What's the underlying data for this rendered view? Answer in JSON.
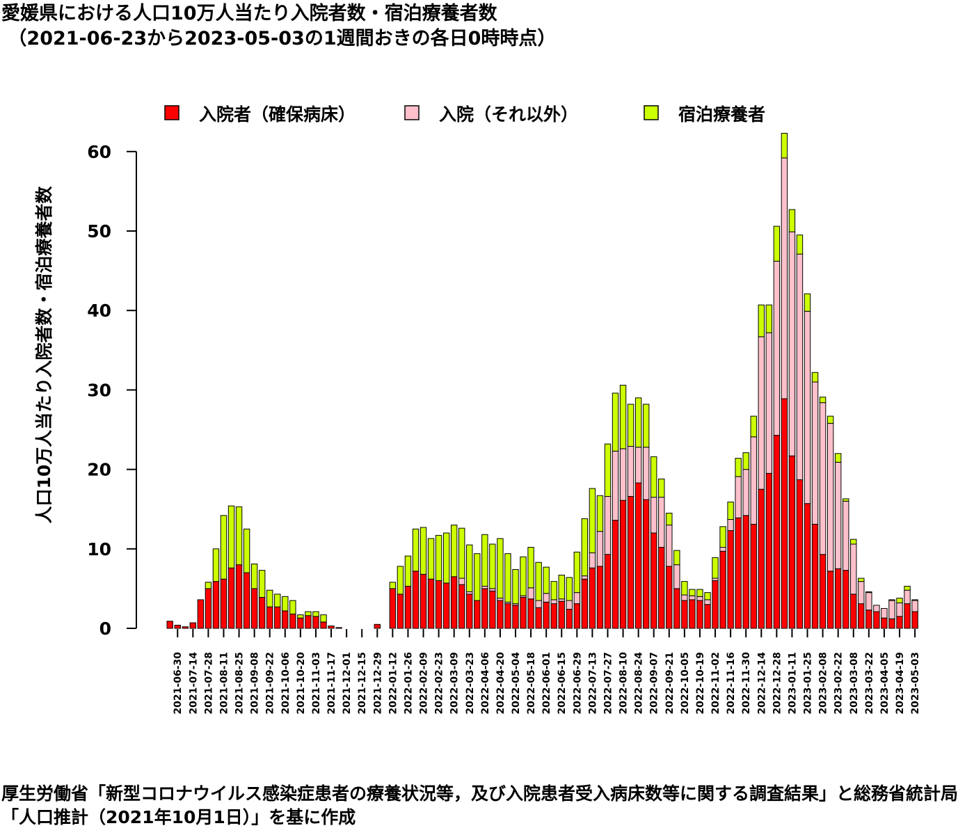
{
  "title": {
    "line1": "愛媛県における人口10万人当たり入院者数・宿泊療養者数",
    "line2": "（2021-06-23から2023-05-03の1週間おきの各日0時時点）"
  },
  "footer": "厚生労働省「新型コロナウイルス感染症患者の療養状況等，及び入院患者受入病床数等に関する調査結果」と総務省統計局「人口推計（2021年10月1日）」を基に作成",
  "chart_data": {
    "type": "bar",
    "stacked": true,
    "title": "愛媛県における人口10万人当たり入院者数・宿泊療養者数 （2021-06-23から2023-05-03の1週間おきの各日0時時点）",
    "ylabel": "人口10万人当たり入院者数・宿泊療養者数",
    "xlabel": "",
    "ylim": [
      0,
      62.5
    ],
    "yticks": [
      0,
      10,
      20,
      30,
      40,
      50,
      60
    ],
    "legend_position": "top",
    "grid": false,
    "x_tick_labels": [
      "2021-06-30",
      "2021-07-14",
      "2021-07-28",
      "2021-08-11",
      "2021-08-25",
      "2021-09-08",
      "2021-09-22",
      "2021-10-06",
      "2021-10-20",
      "2021-11-03",
      "2021-11-17",
      "2021-12-01",
      "2021-12-15",
      "2021-12-29",
      "2022-01-12",
      "2022-01-26",
      "2022-02-09",
      "2022-02-23",
      "2022-03-09",
      "2022-03-23",
      "2022-04-06",
      "2022-04-20",
      "2022-05-04",
      "2022-05-18",
      "2022-06-01",
      "2022-06-15",
      "2022-06-29",
      "2022-07-13",
      "2022-07-27",
      "2022-08-10",
      "2022-08-24",
      "2022-09-07",
      "2022-09-21",
      "2022-10-05",
      "2022-10-19",
      "2022-11-02",
      "2022-11-16",
      "2022-11-30",
      "2022-12-14",
      "2022-12-28",
      "2023-01-11",
      "2023-01-25",
      "2023-02-08",
      "2023-02-22",
      "2023-03-08",
      "2023-03-22",
      "2023-04-05",
      "2023-04-19",
      "2023-05-03"
    ],
    "categories": [
      "2021-06-23",
      "2021-06-30",
      "2021-07-07",
      "2021-07-14",
      "2021-07-21",
      "2021-07-28",
      "2021-08-04",
      "2021-08-11",
      "2021-08-18",
      "2021-08-25",
      "2021-09-01",
      "2021-09-08",
      "2021-09-15",
      "2021-09-22",
      "2021-09-29",
      "2021-10-06",
      "2021-10-13",
      "2021-10-20",
      "2021-10-27",
      "2021-11-03",
      "2021-11-10",
      "2021-11-17",
      "2021-11-24",
      "2021-12-01",
      "2021-12-08",
      "2021-12-15",
      "2021-12-22",
      "2021-12-29",
      "2022-01-05",
      "2022-01-12",
      "2022-01-19",
      "2022-01-26",
      "2022-02-02",
      "2022-02-09",
      "2022-02-16",
      "2022-02-23",
      "2022-03-02",
      "2022-03-09",
      "2022-03-16",
      "2022-03-23",
      "2022-03-30",
      "2022-04-06",
      "2022-04-13",
      "2022-04-20",
      "2022-04-27",
      "2022-05-04",
      "2022-05-11",
      "2022-05-18",
      "2022-05-25",
      "2022-06-01",
      "2022-06-08",
      "2022-06-15",
      "2022-06-22",
      "2022-06-29",
      "2022-07-06",
      "2022-07-13",
      "2022-07-20",
      "2022-07-27",
      "2022-08-03",
      "2022-08-10",
      "2022-08-17",
      "2022-08-24",
      "2022-08-31",
      "2022-09-07",
      "2022-09-14",
      "2022-09-21",
      "2022-09-28",
      "2022-10-05",
      "2022-10-12",
      "2022-10-19",
      "2022-10-26",
      "2022-11-02",
      "2022-11-09",
      "2022-11-16",
      "2022-11-23",
      "2022-11-30",
      "2022-12-07",
      "2022-12-14",
      "2022-12-21",
      "2022-12-28",
      "2023-01-04",
      "2023-01-11",
      "2023-01-18",
      "2023-01-25",
      "2023-02-01",
      "2023-02-08",
      "2023-02-15",
      "2023-02-22",
      "2023-03-01",
      "2023-03-08",
      "2023-03-15",
      "2023-03-22",
      "2023-03-29",
      "2023-04-05",
      "2023-04-12",
      "2023-04-19",
      "2023-04-26",
      "2023-05-03"
    ],
    "series": [
      {
        "name": "入院者（確保病床）",
        "color": "#ff0000",
        "values": [
          0.9,
          0.4,
          0.2,
          0.7,
          3.6,
          5.0,
          5.9,
          6.2,
          7.6,
          8.0,
          7.0,
          5.0,
          3.9,
          2.7,
          2.7,
          2.2,
          1.8,
          1.3,
          1.6,
          1.5,
          0.8,
          0.3,
          0.1,
          0,
          0,
          0,
          0,
          0.5,
          0,
          5.0,
          4.3,
          5.3,
          7.2,
          6.8,
          6.2,
          6.0,
          5.7,
          6.5,
          5.5,
          4.3,
          3.5,
          5.0,
          4.7,
          3.5,
          3.1,
          2.9,
          3.9,
          3.7,
          2.6,
          3.3,
          3.1,
          3.4,
          2.4,
          3.1,
          6.2,
          7.6,
          7.8,
          9.3,
          13.6,
          16.1,
          16.6,
          18.3,
          16.2,
          12.0,
          10.2,
          7.8,
          5.0,
          3.5,
          3.6,
          3.5,
          3.0,
          6.0,
          9.7,
          12.3,
          13.9,
          14.2,
          13.1,
          17.5,
          19.5,
          24.3,
          28.9,
          21.7,
          18.7,
          15.7,
          13.1,
          9.3,
          7.2,
          7.5,
          7.3,
          4.3,
          3.1,
          2.3,
          2.1,
          1.3,
          1.2,
          1.5,
          3.1,
          2.1
        ]
      },
      {
        "name": "入院（それ以外）",
        "color": "#ffc0cb",
        "values": [
          0,
          0,
          0,
          0,
          0,
          0,
          0,
          0,
          0,
          0,
          0,
          0,
          0,
          0,
          0,
          0,
          0,
          0,
          0,
          0,
          0,
          0,
          0,
          0,
          0,
          0,
          0,
          0,
          0,
          0,
          0,
          0,
          0,
          0,
          0,
          0,
          0,
          0,
          0.8,
          0.3,
          0,
          0.3,
          0.3,
          0.3,
          0.2,
          0.2,
          0.2,
          1.4,
          0.9,
          1.1,
          0.5,
          0.3,
          1.1,
          1.4,
          0.4,
          1.9,
          4.4,
          7.3,
          8.7,
          6.5,
          6.3,
          4.5,
          6.6,
          4.5,
          6.3,
          5.2,
          3.0,
          0.7,
          0.5,
          0.5,
          0.6,
          0.3,
          0.5,
          1.4,
          5.2,
          5.8,
          11.0,
          19.2,
          17.7,
          21.9,
          30.3,
          28.2,
          28.4,
          24.2,
          17.9,
          19.1,
          18.6,
          13.4,
          8.7,
          6.3,
          2.8,
          2.2,
          0.8,
          1.2,
          2.3,
          1.7,
          1.7,
          1.4
        ]
      },
      {
        "name": "宿泊療養者",
        "color": "#ccff00",
        "values": [
          0,
          0,
          0,
          0,
          0,
          0.8,
          4.1,
          8.0,
          7.8,
          7.3,
          5.5,
          3.1,
          3.4,
          2.1,
          1.6,
          1.8,
          1.7,
          0.4,
          0.5,
          0.6,
          0.9,
          0,
          0,
          0,
          0,
          0,
          0,
          0,
          0,
          0.8,
          3.5,
          3.8,
          5.3,
          5.9,
          5.1,
          5.7,
          6.3,
          6.5,
          6.3,
          5.9,
          5.9,
          6.5,
          5.6,
          7.5,
          6.1,
          4.3,
          4.9,
          5.1,
          4.8,
          3.3,
          2.3,
          3.0,
          2.9,
          5.1,
          7.2,
          8.1,
          4.5,
          6.6,
          7.3,
          8.0,
          5.3,
          6.2,
          5.4,
          5.1,
          2.3,
          1.5,
          1.8,
          1.7,
          0.8,
          0.9,
          0.9,
          2.6,
          2.6,
          2.2,
          2.3,
          2.1,
          2.6,
          4.0,
          3.5,
          4.4,
          3.1,
          2.8,
          2.4,
          2.2,
          1.2,
          0.7,
          0.9,
          1.1,
          0.3,
          0.6,
          0.4,
          0.1,
          0,
          0,
          0.1,
          0.6,
          0.5,
          0.1
        ]
      }
    ]
  }
}
